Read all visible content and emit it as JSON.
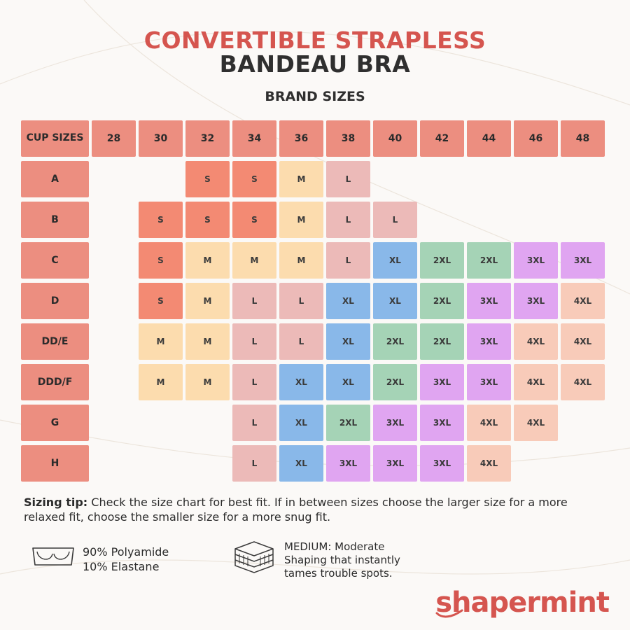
{
  "title_line1": "CONVERTIBLE STRAPLESS",
  "title_line2": "BANDEAU BRA",
  "subtitle": "BRAND SIZES",
  "corner_label": "CUP SIZES",
  "band_sizes": [
    "28",
    "30",
    "32",
    "34",
    "36",
    "38",
    "40",
    "42",
    "44",
    "46",
    "48"
  ],
  "cup_sizes": [
    "A",
    "B",
    "C",
    "D",
    "DD/E",
    "DDD/F",
    "G",
    "H"
  ],
  "size_table": [
    [
      "",
      "",
      "S",
      "S",
      "M",
      "L",
      "",
      "",
      "",
      "",
      ""
    ],
    [
      "",
      "S",
      "S",
      "S",
      "M",
      "L",
      "L",
      "",
      "",
      "",
      ""
    ],
    [
      "",
      "S",
      "M",
      "M",
      "M",
      "L",
      "XL",
      "2XL",
      "2XL",
      "3XL",
      "3XL"
    ],
    [
      "",
      "S",
      "M",
      "L",
      "L",
      "XL",
      "XL",
      "2XL",
      "3XL",
      "3XL",
      "4XL"
    ],
    [
      "",
      "M",
      "M",
      "L",
      "L",
      "XL",
      "2XL",
      "2XL",
      "3XL",
      "4XL",
      "4XL"
    ],
    [
      "",
      "M",
      "M",
      "L",
      "XL",
      "XL",
      "2XL",
      "3XL",
      "3XL",
      "4XL",
      "4XL"
    ],
    [
      "",
      "",
      "",
      "L",
      "XL",
      "2XL",
      "3XL",
      "3XL",
      "4XL",
      "4XL",
      ""
    ],
    [
      "",
      "",
      "",
      "L",
      "XL",
      "3XL",
      "3XL",
      "3XL",
      "4XL",
      "",
      ""
    ]
  ],
  "size_colors": {
    "S": "#f38a73",
    "M": "#fcdcae",
    "L": "#ecbab8",
    "XL": "#89b8e9",
    "2XL": "#a5d3b6",
    "3XL": "#e0a5f1",
    "4XL": "#f8cbb9"
  },
  "header_color": "#ec8e80",
  "tip_label": "Sizing tip:",
  "tip_text": " Check the size chart for best fit. If in between sizes choose the larger size for a more relaxed fit, choose the smaller size for a more snug fit.",
  "material_line1": "90% Polyamide",
  "material_line2": "10% Elastane",
  "shaping_line1": "MEDIUM: Moderate",
  "shaping_line2": "Shaping that instantly",
  "shaping_line3": "tames trouble spots.",
  "brand": "shapermint",
  "icons": {
    "material": "bra-icon",
    "shaping": "layers-icon"
  }
}
